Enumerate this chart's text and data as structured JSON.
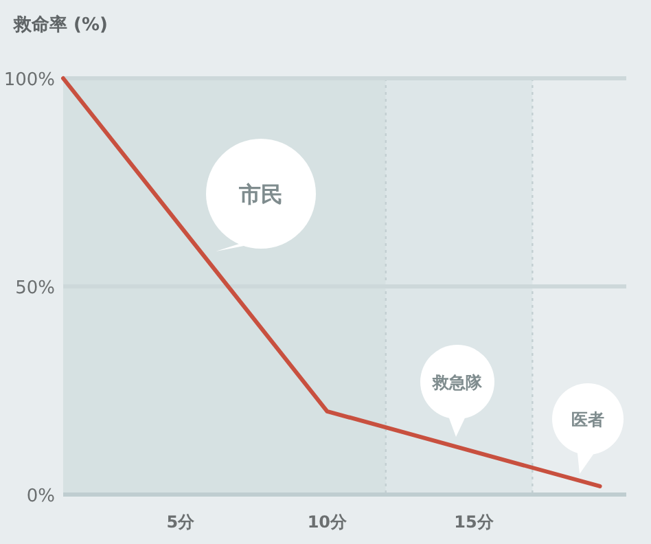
{
  "chart_data": {
    "type": "line",
    "ylabel": "救命率 (%)",
    "x": [
      1,
      10,
      19.3
    ],
    "series": [
      {
        "color": "#c8503f",
        "values": [
          100,
          20,
          2
        ]
      }
    ],
    "xlim": [
      1,
      20.2
    ],
    "ylim": [
      0,
      100
    ],
    "xticks": [
      {
        "value": 5,
        "label": "5分"
      },
      {
        "value": 10,
        "label": "10分"
      },
      {
        "value": 15,
        "label": "15分"
      }
    ],
    "yticks": [
      {
        "value": 0,
        "label": "0%"
      },
      {
        "value": 50,
        "label": "50%"
      },
      {
        "value": 100,
        "label": "100%"
      }
    ],
    "grid": "y",
    "marker": "none",
    "line_style": "solid",
    "bands": [
      {
        "axis": "x",
        "from": 1,
        "to": 12,
        "color": "#d6e1e2"
      },
      {
        "axis": "x",
        "from": 12,
        "to": 17,
        "color": "#dde6e8"
      }
    ],
    "ref_lines": [
      {
        "axis": "x",
        "value": 12,
        "color": "#c3cfd2",
        "line_style": "dotted"
      },
      {
        "axis": "x",
        "value": 17,
        "color": "#c3cfd2",
        "line_style": "dotted"
      }
    ],
    "annotations": [
      "市民",
      "救急隊",
      "医者"
    ]
  }
}
